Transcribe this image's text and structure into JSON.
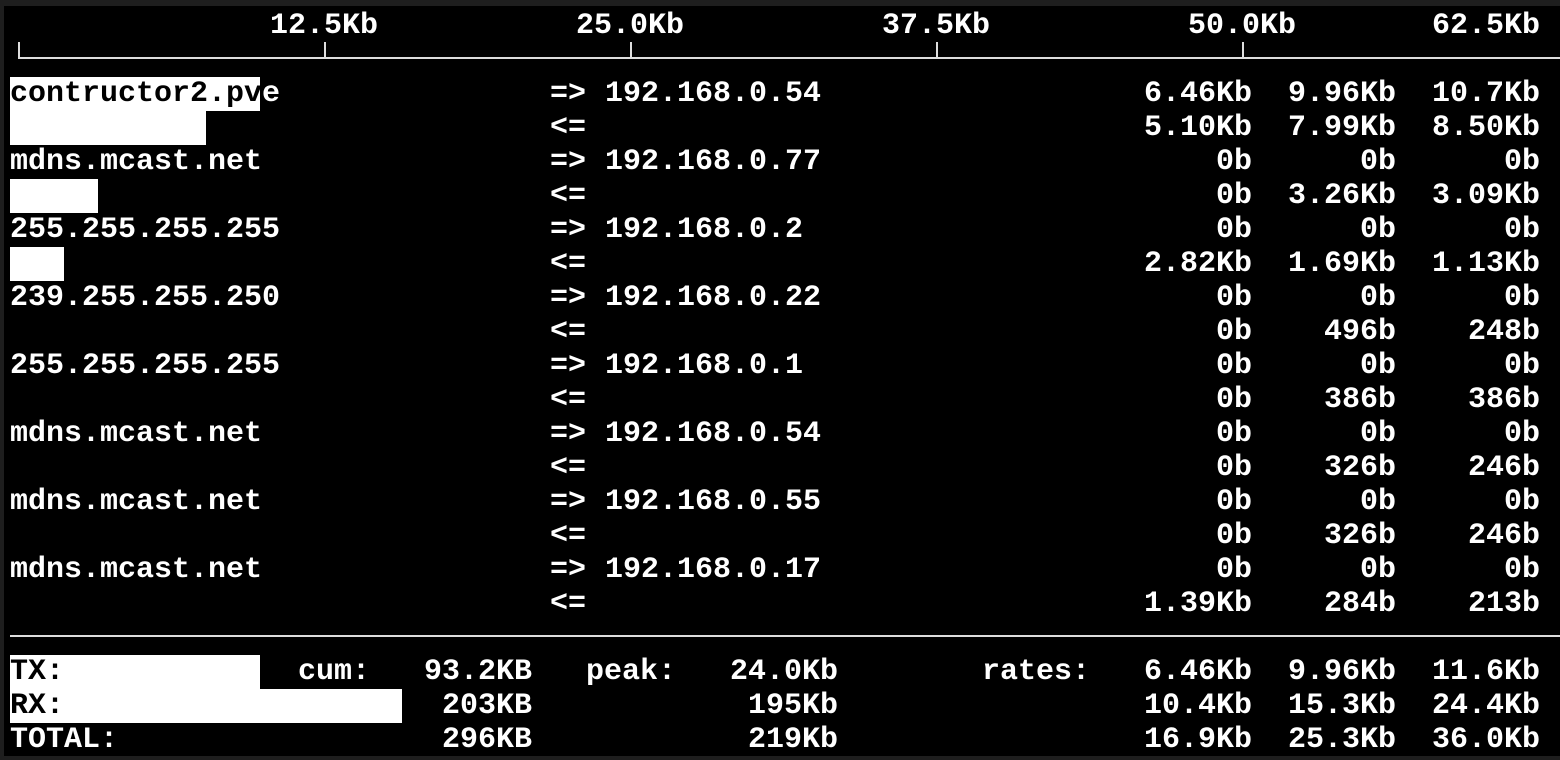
{
  "scale": {
    "unit_max_kb": 62.5,
    "labels": [
      "12.5Kb",
      "25.0Kb",
      "37.5Kb",
      "50.0Kb",
      "62.5Kb"
    ],
    "ticks_kb": [
      12.5,
      25.0,
      37.5,
      50.0
    ]
  },
  "connections": [
    {
      "host": "contructor2.pve",
      "dest": "192.168.0.54",
      "tx": {
        "arrow": "=>",
        "rates": [
          "6.46Kb",
          "9.96Kb",
          "10.7Kb"
        ],
        "bar_kb": 10.2
      },
      "rx": {
        "arrow": "<=",
        "rates": [
          "5.10Kb",
          "7.99Kb",
          "8.50Kb"
        ],
        "bar_kb": 8.0
      }
    },
    {
      "host": "mdns.mcast.net",
      "dest": "192.168.0.77",
      "tx": {
        "arrow": "=>",
        "rates": [
          "0b",
          "0b",
          "0b"
        ],
        "bar_kb": 0
      },
      "rx": {
        "arrow": "<=",
        "rates": [
          "0b",
          "3.26Kb",
          "3.09Kb"
        ],
        "bar_kb": 3.6
      }
    },
    {
      "host": "255.255.255.255",
      "dest": "192.168.0.2",
      "tx": {
        "arrow": "=>",
        "rates": [
          "0b",
          "0b",
          "0b"
        ],
        "bar_kb": 0
      },
      "rx": {
        "arrow": "<=",
        "rates": [
          "2.82Kb",
          "1.69Kb",
          "1.13Kb"
        ],
        "bar_kb": 2.2
      }
    },
    {
      "host": "239.255.255.250",
      "dest": "192.168.0.22",
      "tx": {
        "arrow": "=>",
        "rates": [
          "0b",
          "0b",
          "0b"
        ],
        "bar_kb": 0
      },
      "rx": {
        "arrow": "<=",
        "rates": [
          "0b",
          "496b",
          "248b"
        ],
        "bar_kb": 0
      }
    },
    {
      "host": "255.255.255.255",
      "dest": "192.168.0.1",
      "tx": {
        "arrow": "=>",
        "rates": [
          "0b",
          "0b",
          "0b"
        ],
        "bar_kb": 0
      },
      "rx": {
        "arrow": "<=",
        "rates": [
          "0b",
          "386b",
          "386b"
        ],
        "bar_kb": 0
      }
    },
    {
      "host": "mdns.mcast.net",
      "dest": "192.168.0.54",
      "tx": {
        "arrow": "=>",
        "rates": [
          "0b",
          "0b",
          "0b"
        ],
        "bar_kb": 0
      },
      "rx": {
        "arrow": "<=",
        "rates": [
          "0b",
          "326b",
          "246b"
        ],
        "bar_kb": 0
      }
    },
    {
      "host": "mdns.mcast.net",
      "dest": "192.168.0.55",
      "tx": {
        "arrow": "=>",
        "rates": [
          "0b",
          "0b",
          "0b"
        ],
        "bar_kb": 0
      },
      "rx": {
        "arrow": "<=",
        "rates": [
          "0b",
          "326b",
          "246b"
        ],
        "bar_kb": 0
      }
    },
    {
      "host": "mdns.mcast.net",
      "dest": "192.168.0.17",
      "tx": {
        "arrow": "=>",
        "rates": [
          "0b",
          "0b",
          "0b"
        ],
        "bar_kb": 0
      },
      "rx": {
        "arrow": "<=",
        "rates": [
          "1.39Kb",
          "284b",
          "213b"
        ],
        "bar_kb": 0
      }
    }
  ],
  "totals": {
    "cum_label": "cum:",
    "peak_label": "peak:",
    "rates_label": "rates:",
    "rows": [
      {
        "label": "TX:",
        "cum": "93.2KB",
        "peak": "24.0Kb",
        "rates": [
          "6.46Kb",
          "9.96Kb",
          "11.6Kb"
        ],
        "bar_kb": 10.2
      },
      {
        "label": "RX:",
        "cum": "203KB",
        "peak": "195Kb",
        "rates": [
          "10.4Kb",
          "15.3Kb",
          "24.4Kb"
        ],
        "bar_kb": 16.0
      },
      {
        "label": "TOTAL:",
        "cum": "296KB",
        "peak": "219Kb",
        "rates": [
          "16.9Kb",
          "25.3Kb",
          "36.0Kb"
        ],
        "bar_kb": 0
      }
    ]
  },
  "colors": {
    "background": "#000000",
    "text": "#ffffff",
    "bar": "#ffffff"
  }
}
